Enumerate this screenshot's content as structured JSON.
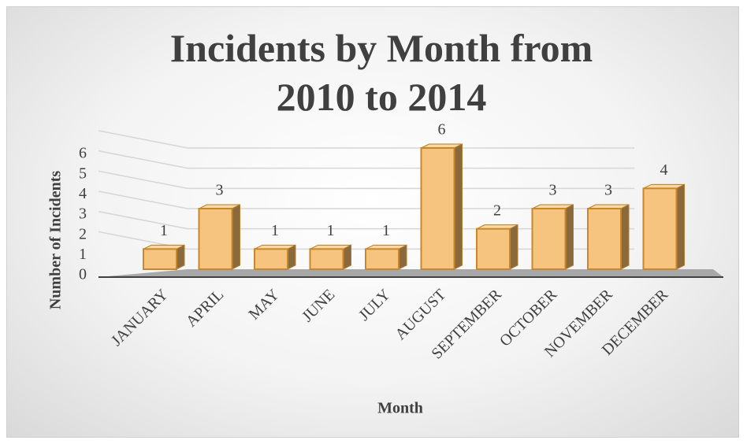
{
  "chart_data": {
    "type": "bar",
    "title": "Incidents by Month from 2010 to 2014",
    "categories": [
      "JANUARY",
      "APRIL",
      "MAY",
      "JUNE",
      "JULY",
      "AUGUST",
      "SEPTEMBER",
      "OCTOBER",
      "NOVEMBER",
      "DECEMBER"
    ],
    "values": [
      1,
      3,
      1,
      1,
      1,
      6,
      2,
      3,
      3,
      4
    ],
    "color": "#f7c47f",
    "ylim": [
      0,
      6
    ],
    "yticks": [
      0,
      1,
      2,
      3,
      4,
      5,
      6
    ],
    "grid": true,
    "x_label": "Month",
    "y_label": "Number of Incidents"
  }
}
